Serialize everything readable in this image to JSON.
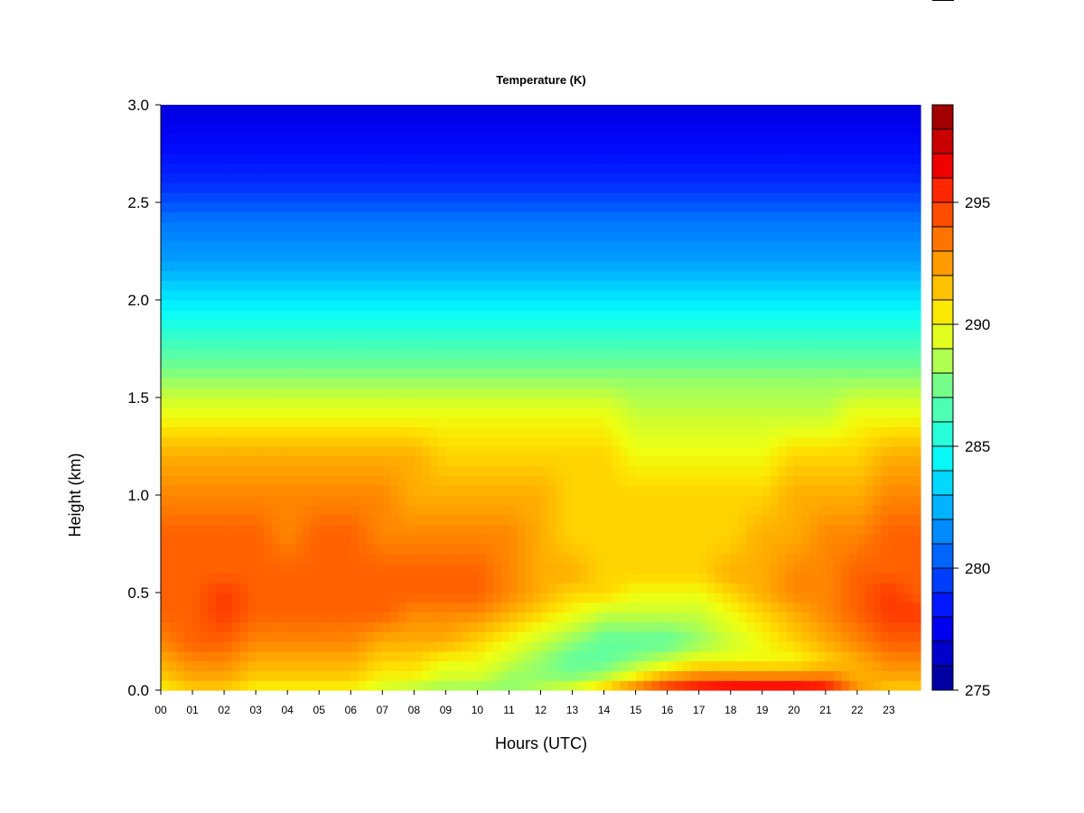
{
  "chart_data": {
    "type": "heatmap",
    "title": "Temperature (K)",
    "xlabel": "Hours (UTC)",
    "ylabel": "Height (km)",
    "x_ticks": [
      "00",
      "01",
      "02",
      "03",
      "04",
      "05",
      "06",
      "07",
      "08",
      "09",
      "10",
      "11",
      "12",
      "13",
      "14",
      "15",
      "16",
      "17",
      "18",
      "19",
      "20",
      "21",
      "22",
      "23"
    ],
    "y_ticks": [
      "0.0",
      "0.5",
      "1.0",
      "1.5",
      "2.0",
      "2.5",
      "3.0"
    ],
    "xlim": [
      0,
      24
    ],
    "ylim": [
      0,
      3.0
    ],
    "colorbar": {
      "ticks": [
        "275",
        "280",
        "285",
        "290",
        "295"
      ],
      "range": [
        275,
        299
      ],
      "levels": 24,
      "colors": [
        "#00008f",
        "#0000b0",
        "#0000d0",
        "#0000ef",
        "#0010ff",
        "#0030ff",
        "#0050ff",
        "#0070ff",
        "#0090ff",
        "#00b0ff",
        "#00d0ff",
        "#00efff",
        "#10ffef",
        "#30ffcf",
        "#50ffaf",
        "#70ff8f",
        "#9fff60",
        "#cfff30",
        "#efff10",
        "#ffdf00",
        "#ffbf00",
        "#ff9f00",
        "#ff7f00",
        "#ff5f00",
        "#ff3f00",
        "#ff1f00",
        "#ef0000",
        "#cf0000",
        "#af0000",
        "#8f0000"
      ]
    },
    "hours": [
      0,
      1,
      2,
      3,
      4,
      5,
      6,
      7,
      8,
      9,
      10,
      11,
      12,
      13,
      14,
      15,
      16,
      17,
      18,
      19,
      20,
      21,
      22,
      23,
      24
    ],
    "heights": [
      0,
      0.05,
      0.15,
      0.25,
      0.4,
      0.5,
      0.6,
      0.8,
      1.0,
      1.2,
      1.4,
      1.6,
      1.8,
      2.0,
      2.2,
      2.4,
      2.6,
      2.8,
      3.0
    ],
    "values": [
      [
        290,
        291,
        291,
        290,
        290,
        290,
        290,
        289,
        288,
        288,
        288,
        288,
        289,
        290,
        292,
        294,
        296,
        297,
        298,
        298,
        298,
        297,
        293,
        291,
        291
      ],
      [
        291,
        292,
        292,
        291,
        291,
        291,
        291,
        290,
        290,
        289,
        289,
        288,
        288,
        288,
        289,
        291,
        293,
        294,
        294,
        294,
        294,
        294,
        292,
        292,
        292
      ],
      [
        292,
        293,
        293,
        292,
        292,
        292,
        292,
        291,
        291,
        290,
        290,
        289,
        288,
        287,
        287,
        288,
        289,
        290,
        290,
        290,
        290,
        291,
        292,
        293,
        293
      ],
      [
        293,
        294,
        294,
        293,
        293,
        293,
        293,
        292,
        292,
        292,
        291,
        290,
        289,
        288,
        287,
        287,
        287,
        288,
        289,
        290,
        291,
        292,
        293,
        294,
        294
      ],
      [
        294,
        294,
        295,
        294,
        294,
        294,
        294,
        294,
        293,
        293,
        293,
        292,
        291,
        290,
        289,
        289,
        289,
        289,
        290,
        291,
        292,
        293,
        294,
        295,
        295
      ],
      [
        294,
        294,
        295,
        294,
        294,
        294,
        294,
        294,
        294,
        294,
        294,
        293,
        292,
        291,
        291,
        290,
        290,
        290,
        291,
        292,
        293,
        293,
        294,
        295,
        294
      ],
      [
        294,
        294,
        294,
        294,
        294,
        294,
        294,
        294,
        294,
        294,
        294,
        293,
        292,
        292,
        291,
        291,
        291,
        291,
        292,
        292,
        293,
        293,
        294,
        294,
        294
      ],
      [
        294,
        294,
        294,
        294,
        293,
        294,
        294,
        293,
        293,
        293,
        293,
        293,
        292,
        291,
        291,
        291,
        291,
        291,
        291,
        292,
        292,
        293,
        293,
        294,
        294
      ],
      [
        293,
        293,
        293,
        293,
        293,
        293,
        293,
        293,
        292,
        292,
        292,
        292,
        292,
        291,
        291,
        291,
        291,
        291,
        291,
        291,
        292,
        292,
        292,
        293,
        293
      ],
      [
        292,
        292,
        292,
        292,
        292,
        292,
        292,
        292,
        292,
        291,
        291,
        291,
        291,
        291,
        291,
        290,
        290,
        290,
        290,
        290,
        291,
        291,
        291,
        292,
        292
      ],
      [
        290,
        290,
        290,
        290,
        290,
        290,
        290,
        290,
        290,
        290,
        290,
        290,
        290,
        290,
        290,
        289,
        289,
        289,
        289,
        289,
        289,
        289,
        290,
        290,
        290
      ],
      [
        288,
        288,
        288,
        288,
        288,
        288,
        288,
        288,
        288,
        288,
        288,
        288,
        288,
        288,
        288,
        288,
        288,
        288,
        288,
        288,
        288,
        288,
        288,
        288,
        288
      ],
      [
        286,
        286,
        286,
        286,
        286,
        286,
        286,
        286,
        286,
        286,
        286,
        286,
        286,
        286,
        286,
        286,
        286,
        286,
        286,
        286,
        286,
        286,
        286,
        286,
        286
      ],
      [
        284,
        284,
        284,
        284,
        284,
        284,
        284,
        284,
        284,
        284,
        284,
        284,
        284,
        284,
        284,
        284,
        284,
        284,
        284,
        284,
        284,
        284,
        284,
        284,
        284
      ],
      [
        282,
        282,
        282,
        282,
        282,
        282,
        282,
        282,
        282,
        282,
        282,
        282,
        282,
        282,
        282,
        282,
        282,
        282,
        282,
        282,
        282,
        282,
        282,
        282,
        282
      ],
      [
        281,
        281,
        281,
        281,
        281,
        281,
        281,
        281,
        281,
        281,
        281,
        281,
        281,
        281,
        281,
        281,
        281,
        281,
        281,
        281,
        281,
        281,
        281,
        281,
        281
      ],
      [
        279,
        279,
        279,
        279,
        279,
        279,
        279,
        279,
        279,
        279,
        279,
        279,
        279,
        279,
        279,
        279,
        279,
        279,
        279,
        279,
        279,
        279,
        279,
        279,
        279
      ],
      [
        278,
        278,
        278,
        278,
        278,
        278,
        278,
        278,
        278,
        278,
        278,
        278,
        278,
        278,
        278,
        278,
        278,
        278,
        278,
        278,
        278,
        278,
        278,
        278,
        278
      ],
      [
        277,
        277,
        277,
        277,
        277,
        277,
        277,
        277,
        277,
        277,
        277,
        277,
        277,
        277,
        277,
        277,
        277,
        277,
        277,
        277,
        277,
        277,
        277,
        277,
        277
      ]
    ],
    "grid": false,
    "legend": "right colorbar"
  }
}
